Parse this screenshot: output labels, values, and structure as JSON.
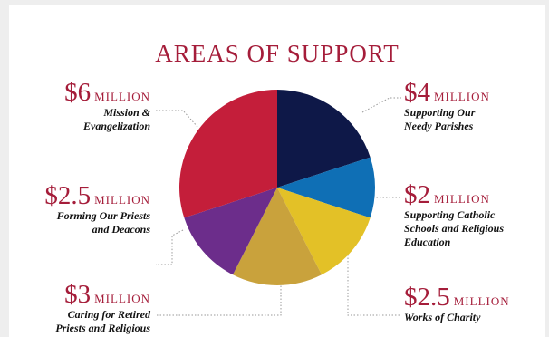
{
  "chart_data": {
    "type": "pie",
    "title": "AREAS OF SUPPORT",
    "unit_label": "MILLION",
    "slices": [
      {
        "amount_text": "$4",
        "value": 4,
        "desc": [
          "Supporting Our",
          "Needy Parishes"
        ],
        "color": "#0e1848"
      },
      {
        "amount_text": "$2",
        "value": 2,
        "desc": [
          "Supporting Catholic",
          "Schools and Religious",
          "Education"
        ],
        "color": "#0f6fb5"
      },
      {
        "amount_text": "$2.5",
        "value": 2.5,
        "desc": [
          "Works of Charity"
        ],
        "color": "#e3c127"
      },
      {
        "amount_text": "$3",
        "value": 3,
        "desc": [
          "Caring for Retired",
          "Priests and Religious"
        ],
        "color": "#c9a23c"
      },
      {
        "amount_text": "$2.5",
        "value": 2.5,
        "desc": [
          "Forming Our Priests",
          "and Deacons"
        ],
        "color": "#6c2d8b"
      },
      {
        "amount_text": "$6",
        "value": 6,
        "desc": [
          "Mission &",
          "Evangelization"
        ],
        "color": "#c41e3a"
      }
    ]
  }
}
